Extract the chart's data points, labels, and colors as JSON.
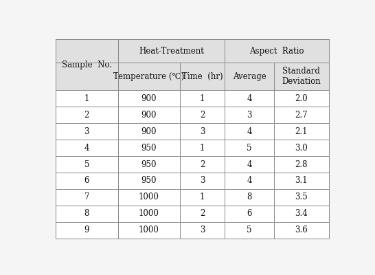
{
  "rows": [
    [
      "1",
      "900",
      "1",
      "4",
      "2.0"
    ],
    [
      "2",
      "900",
      "2",
      "3",
      "2.7"
    ],
    [
      "3",
      "900",
      "3",
      "4",
      "2.1"
    ],
    [
      "4",
      "950",
      "1",
      "5",
      "3.0"
    ],
    [
      "5",
      "950",
      "2",
      "4",
      "2.8"
    ],
    [
      "6",
      "950",
      "3",
      "4",
      "3.1"
    ],
    [
      "7",
      "1000",
      "1",
      "8",
      "3.5"
    ],
    [
      "8",
      "1000",
      "2",
      "6",
      "3.4"
    ],
    [
      "9",
      "1000",
      "3",
      "5",
      "3.6"
    ]
  ],
  "header_bg": "#e0e0e0",
  "row_bg": "#ffffff",
  "text_color": "#111111",
  "border_color": "#888888",
  "font_size": 8.5,
  "header_font_size": 8.5,
  "temp_symbol": "℃",
  "fig_bg": "#f5f5f5"
}
